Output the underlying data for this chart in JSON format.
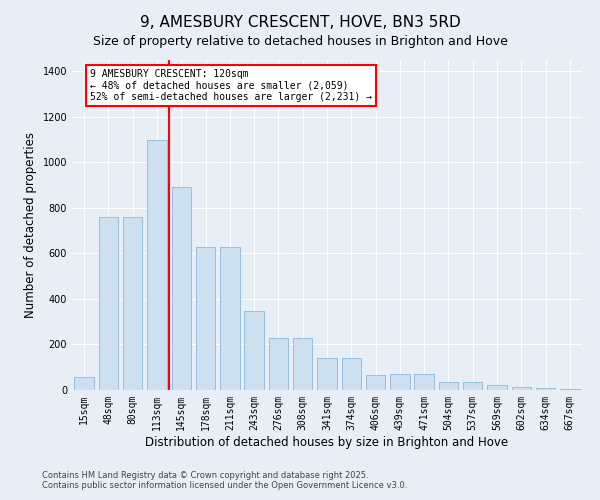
{
  "title": "9, AMESBURY CRESCENT, HOVE, BN3 5RD",
  "subtitle": "Size of property relative to detached houses in Brighton and Hove",
  "xlabel": "Distribution of detached houses by size in Brighton and Hove",
  "ylabel": "Number of detached properties",
  "categories": [
    "15sqm",
    "48sqm",
    "80sqm",
    "113sqm",
    "145sqm",
    "178sqm",
    "211sqm",
    "243sqm",
    "276sqm",
    "308sqm",
    "341sqm",
    "374sqm",
    "406sqm",
    "439sqm",
    "471sqm",
    "504sqm",
    "537sqm",
    "569sqm",
    "602sqm",
    "634sqm",
    "667sqm"
  ],
  "values": [
    55,
    760,
    760,
    1100,
    890,
    630,
    630,
    345,
    230,
    230,
    140,
    140,
    65,
    70,
    70,
    35,
    35,
    20,
    15,
    10,
    5
  ],
  "bar_color": "#cce0f0",
  "bar_edge_color": "#7ab0d4",
  "vline_color": "red",
  "annotation_text": "9 AMESBURY CRESCENT: 120sqm\n← 48% of detached houses are smaller (2,059)\n52% of semi-detached houses are larger (2,231) →",
  "annotation_box_color": "white",
  "annotation_box_edge": "red",
  "bg_color": "#e8eef5",
  "footer": "Contains HM Land Registry data © Crown copyright and database right 2025.\nContains public sector information licensed under the Open Government Licence v3.0.",
  "ylim": [
    0,
    1450
  ],
  "title_fontsize": 11,
  "subtitle_fontsize": 9,
  "axis_label_fontsize": 8.5,
  "tick_fontsize": 7,
  "footer_fontsize": 6
}
